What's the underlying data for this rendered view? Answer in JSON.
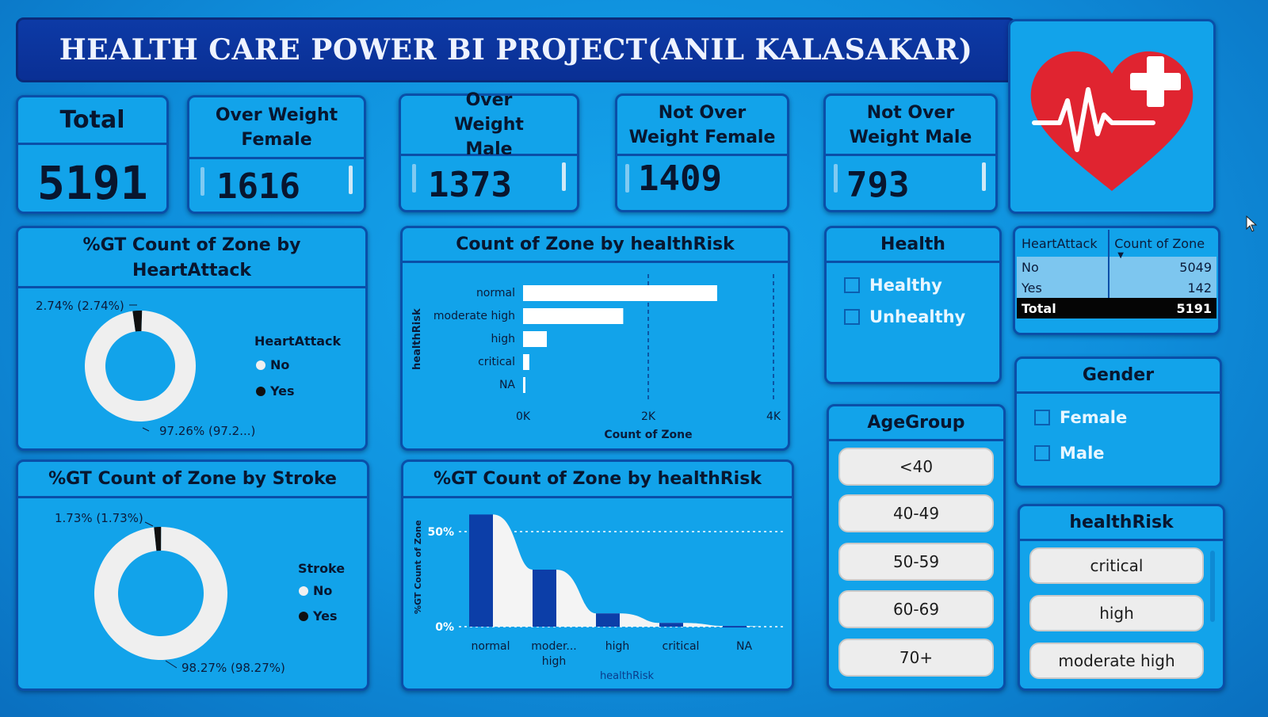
{
  "title": "HEALTH CARE POWER BI PROJECT(ANIL KALASAKAR)",
  "colors": {
    "accent": "#12a3ea",
    "dark_blue": "#0d3aa6",
    "bar_white": "#ffffff",
    "heart_red": "#e02430"
  },
  "kpis": [
    {
      "label": "Total",
      "value": "5191"
    },
    {
      "label": "Over Weight Female",
      "value": "1616"
    },
    {
      "label": "Over Weight Male",
      "value": "1373"
    },
    {
      "label": "Not Over Weight Female",
      "value": "1409"
    },
    {
      "label": "Not Over Weight Male",
      "value": "793"
    }
  ],
  "logo_icon": "heart-medical-cross-icon",
  "heart_attack_donut": {
    "title": "%GT Count of Zone by HeartAttack",
    "label_small": "2.74% (2.74%)",
    "label_large": "97.26% (97.2...)",
    "legend_title": "HeartAttack",
    "legend": [
      "No",
      "Yes"
    ]
  },
  "stroke_donut": {
    "title": "%GT Count of Zone by Stroke",
    "label_small": "1.73% (1.73%)",
    "label_large": "98.27% (98.27%)",
    "legend_title": "Stroke",
    "legend": [
      "No",
      "Yes"
    ]
  },
  "bar_chart": {
    "title": "Count of Zone by healthRisk",
    "ylabel": "healthRisk",
    "xlabel": "Count of Zone",
    "ticks": [
      "0K",
      "2K",
      "4K"
    ]
  },
  "col_chart": {
    "title": "%GT Count of Zone by healthRisk",
    "ylabel": "%GT Count of Zone",
    "xlabel": "healthRisk",
    "ticks": [
      "50%",
      "0%"
    ],
    "categories": [
      "normal",
      "moder... high",
      "high",
      "critical",
      "NA"
    ]
  },
  "chart_data": [
    {
      "type": "pie",
      "title": "%GT Count of Zone by HeartAttack",
      "legend_title": "HeartAttack",
      "categories": [
        "No",
        "Yes"
      ],
      "values": [
        97.26,
        2.74
      ]
    },
    {
      "type": "pie",
      "title": "%GT Count of Zone by Stroke",
      "legend_title": "Stroke",
      "categories": [
        "No",
        "Yes"
      ],
      "values": [
        98.27,
        1.73
      ]
    },
    {
      "type": "bar",
      "title": "Count of Zone by healthRisk",
      "categories": [
        "normal",
        "moderate high",
        "high",
        "critical",
        "NA"
      ],
      "values": [
        3100,
        1600,
        380,
        100,
        20
      ],
      "xlabel": "Count of Zone",
      "ylabel": "healthRisk",
      "xlim": [
        0,
        4000
      ]
    },
    {
      "type": "bar",
      "title": "%GT Count of Zone by healthRisk",
      "categories": [
        "normal",
        "moder... high",
        "high",
        "critical",
        "NA"
      ],
      "values": [
        59,
        30,
        7,
        2,
        0.4
      ],
      "xlabel": "healthRisk",
      "ylabel": "%GT Count of Zone",
      "ylim": [
        0,
        60
      ]
    }
  ],
  "health_slicer": {
    "title": "Health",
    "items": [
      "Healthy",
      "Unhealthy"
    ]
  },
  "matrix": {
    "headers": [
      "HeartAttack",
      "Count of Zone"
    ],
    "rows": [
      {
        "label": "No",
        "value": "5049"
      },
      {
        "label": "Yes",
        "value": "142"
      }
    ],
    "total": {
      "label": "Total",
      "value": "5191"
    }
  },
  "gender_slicer": {
    "title": "Gender",
    "items": [
      "Female",
      "Male"
    ]
  },
  "age_slicer": {
    "title": "AgeGroup",
    "items": [
      "<40",
      "40-49",
      "50-59",
      "60-69",
      "70+"
    ]
  },
  "risk_slicer": {
    "title": "healthRisk",
    "items": [
      "critical",
      "high",
      "moderate high"
    ]
  }
}
